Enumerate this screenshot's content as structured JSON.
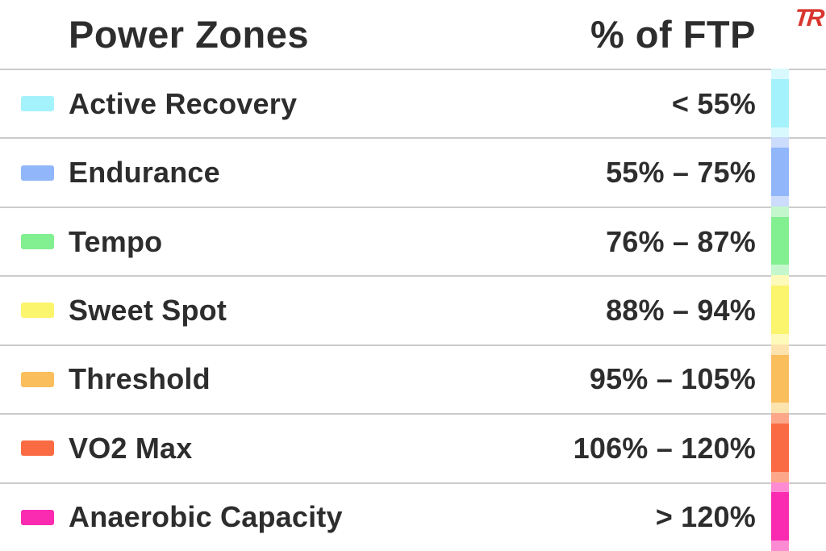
{
  "header": {
    "title": "Power Zones",
    "column": "% of FTP",
    "logo_text": "TR"
  },
  "colors": {
    "text": "#2d2d2d",
    "divider": "#cbcbcb",
    "logo_red": "#d8362e"
  },
  "zones": [
    {
      "name": "Active Recovery",
      "range": "< 55%",
      "color": "#a4f2fb",
      "strip_light": "#d8f9fe"
    },
    {
      "name": "Endurance",
      "range": "55% – 75%",
      "color": "#91b7fa",
      "strip_light": "#cbdcfc"
    },
    {
      "name": "Tempo",
      "range": "76% – 87%",
      "color": "#82ef90",
      "strip_light": "#c5f7cd"
    },
    {
      "name": "Sweet Spot",
      "range": "88% – 94%",
      "color": "#fbf46d",
      "strip_light": "#fdfaba"
    },
    {
      "name": "Threshold",
      "range": "95% – 105%",
      "color": "#fbbe5d",
      "strip_light": "#fde3ae"
    },
    {
      "name": "VO2 Max",
      "range": "106% – 120%",
      "color": "#fb6b43",
      "strip_light": "#fda78a"
    },
    {
      "name": "Anaerobic Capacity",
      "range": "> 120%",
      "color": "#fa2bb0",
      "strip_light": "#fd8bd4"
    }
  ],
  "chart_data": {
    "type": "table",
    "title": "Power Zones",
    "columns": [
      "Power Zones",
      "% of FTP"
    ],
    "rows": [
      [
        "Active Recovery",
        "< 55%"
      ],
      [
        "Endurance",
        "55% – 75%"
      ],
      [
        "Tempo",
        "76% – 87%"
      ],
      [
        "Sweet Spot",
        "88% – 94%"
      ],
      [
        "Threshold",
        "95% – 105%"
      ],
      [
        "VO2 Max",
        "106% – 120%"
      ],
      [
        "Anaerobic Capacity",
        "> 120%"
      ]
    ],
    "zones_numeric_ftp_pct": [
      {
        "name": "Active Recovery",
        "min": null,
        "max": 55
      },
      {
        "name": "Endurance",
        "min": 55,
        "max": 75
      },
      {
        "name": "Tempo",
        "min": 76,
        "max": 87
      },
      {
        "name": "Sweet Spot",
        "min": 88,
        "max": 94
      },
      {
        "name": "Threshold",
        "min": 95,
        "max": 105
      },
      {
        "name": "VO2 Max",
        "min": 106,
        "max": 120
      },
      {
        "name": "Anaerobic Capacity",
        "min": 120,
        "max": null
      }
    ],
    "legend_position": "left-swatches",
    "grid": "horizontal-dividers"
  }
}
